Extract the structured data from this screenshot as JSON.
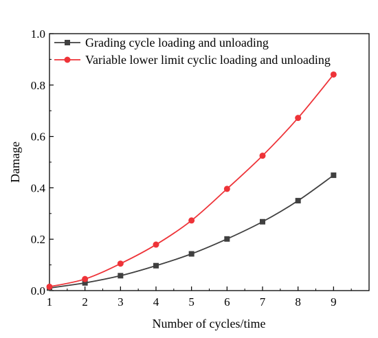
{
  "chart_data": {
    "type": "line",
    "xlabel": "Number of cycles/time",
    "ylabel": "Damage",
    "x": [
      1,
      2,
      3,
      4,
      5,
      6,
      7,
      8,
      9
    ],
    "xticks": [
      "1",
      "2",
      "3",
      "4",
      "5",
      "6",
      "7",
      "8",
      "9"
    ],
    "yticks": [
      "0.0",
      "0.2",
      "0.4",
      "0.6",
      "0.8",
      "1.0"
    ],
    "xlim": [
      1,
      10
    ],
    "ylim": [
      0,
      1.0
    ],
    "legend_position": "top-left",
    "series": [
      {
        "name": "Grading cycle loading and unloading",
        "color": "#404040",
        "marker": "square",
        "values": [
          0.01,
          0.03,
          0.058,
          0.097,
          0.143,
          0.201,
          0.268,
          0.35,
          0.449
        ]
      },
      {
        "name": "Variable lower limit cyclic loading and unloading",
        "color": "#ee3338",
        "marker": "circle",
        "values": [
          0.015,
          0.045,
          0.105,
          0.179,
          0.273,
          0.396,
          0.525,
          0.672,
          0.841
        ]
      }
    ]
  }
}
